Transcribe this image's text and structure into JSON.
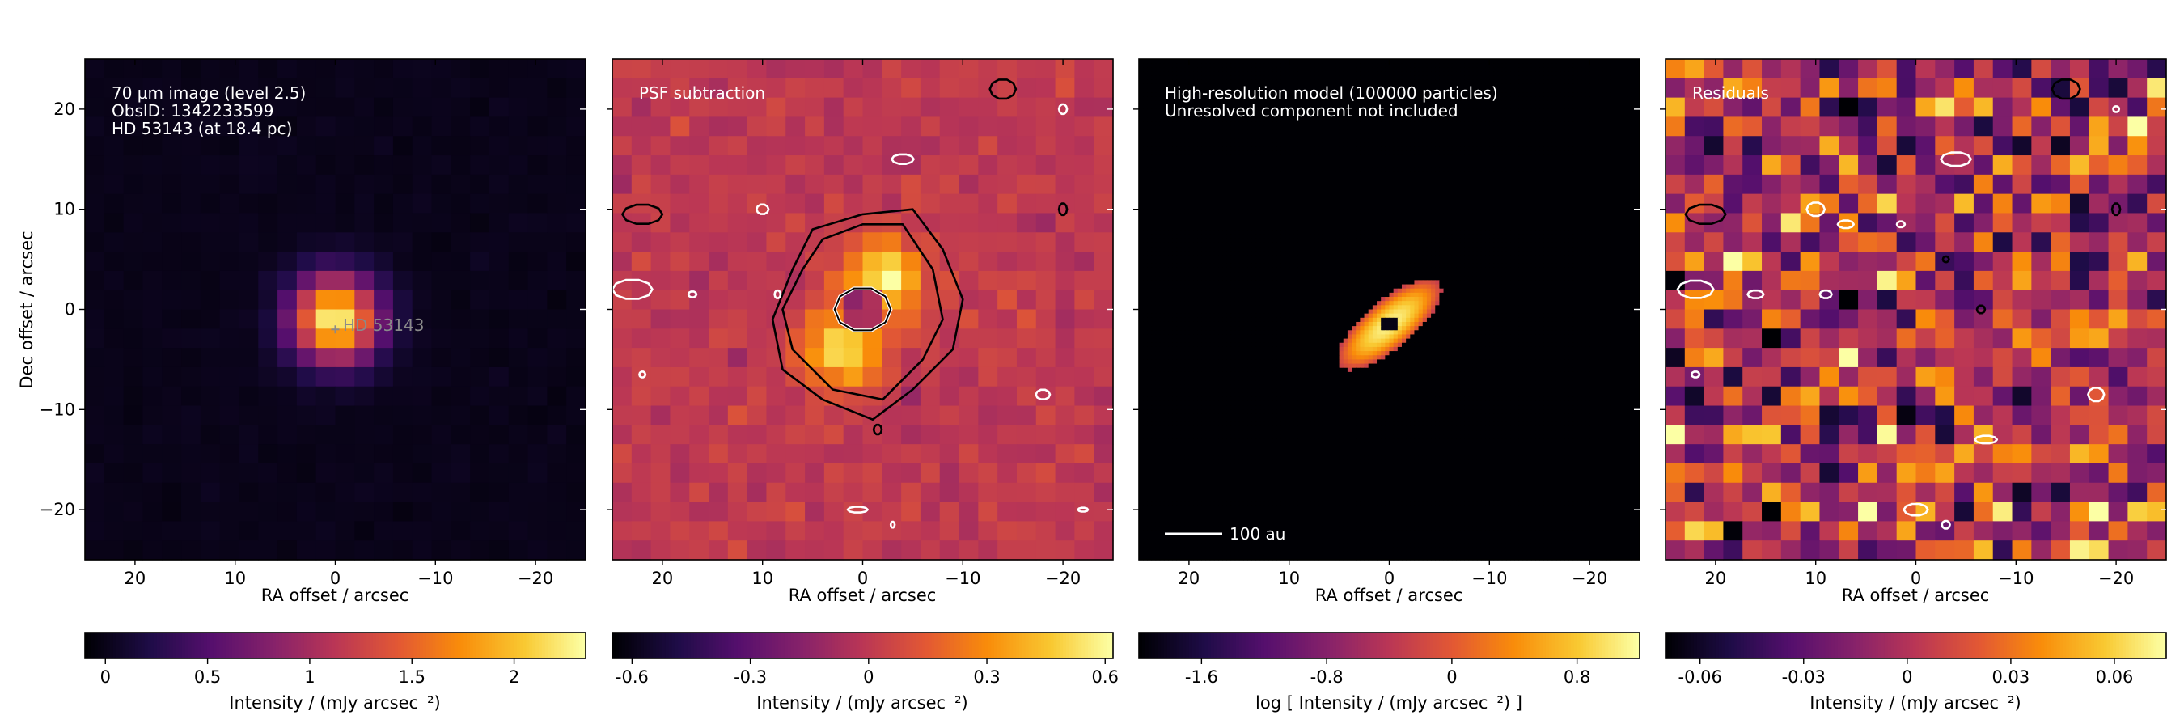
{
  "chart_data": [
    {
      "type": "heatmap",
      "subject": "observed image",
      "annotation_lines": [
        "70 µm image (level 2.5)",
        "ObsID: 1342233599",
        "HD 53143 (at 18.4 pc)"
      ],
      "marker_label": "HD 53143",
      "marker_position": [
        0,
        -2
      ],
      "xlabel": "RA offset / arcsec",
      "ylabel": "Dec offset / arcsec",
      "xlim": [
        25,
        -25
      ],
      "ylim": [
        -25,
        25
      ],
      "xticks": [
        20,
        10,
        0,
        -10,
        -20
      ],
      "yticks": [
        20,
        10,
        0,
        -10,
        -20
      ],
      "xtick_labels": [
        "20",
        "10",
        "0",
        "−10",
        "−20"
      ],
      "ytick_labels": [
        "20",
        "10",
        "0",
        "−10",
        "−20"
      ],
      "colormap": "inferno",
      "colorbar": {
        "label": "Intensity / (mJy arcsec⁻²)",
        "range": [
          -0.1,
          2.35
        ],
        "ticks": [
          0,
          0.5,
          1,
          1.5,
          2
        ],
        "tick_labels": [
          "0",
          "0.5",
          "1",
          "1.5",
          "2"
        ]
      },
      "peak_intensity": 2.3,
      "source_center": [
        0,
        -1
      ],
      "source_fwhm_arcsec": 7
    },
    {
      "type": "heatmap",
      "subject": "PSF subtraction",
      "annotation_lines": [
        "PSF subtraction"
      ],
      "xlabel": "RA offset / arcsec",
      "xlim": [
        25,
        -25
      ],
      "ylim": [
        -25,
        25
      ],
      "xticks": [
        20,
        10,
        0,
        -10,
        -20
      ],
      "xtick_labels": [
        "20",
        "10",
        "0",
        "−10",
        "−20"
      ],
      "colormap": "inferno",
      "colorbar": {
        "label": "Intensity / (mJy arcsec⁻²)",
        "range": [
          -0.65,
          0.62
        ],
        "ticks": [
          -0.6,
          -0.3,
          0,
          0.3,
          0.6
        ],
        "tick_labels": [
          "-0.6",
          "-0.3",
          "0",
          "0.3",
          "0.6"
        ]
      },
      "features": [
        {
          "kind": "positive lobe",
          "center": [
            -2,
            3
          ],
          "peak": 0.6
        },
        {
          "kind": "positive lobe",
          "center": [
            2,
            -4
          ],
          "peak": 0.55
        },
        {
          "kind": "negative core",
          "center": [
            0,
            0
          ],
          "value": -0.6
        }
      ],
      "contours": "black = positive significance levels, white = negative levels"
    },
    {
      "type": "heatmap",
      "subject": "model",
      "annotation_lines": [
        "High-resolution model (100000 particles)",
        "Unresolved component not included"
      ],
      "scale_bar_label": "100 au",
      "xlabel": "RA offset / arcsec",
      "xlim": [
        25,
        -25
      ],
      "ylim": [
        -25,
        25
      ],
      "xticks": [
        20,
        10,
        0,
        -10,
        -20
      ],
      "xtick_labels": [
        "20",
        "10",
        "0",
        "−10",
        "−20"
      ],
      "colormap": "inferno",
      "colorbar": {
        "label": "log [ Intensity / (mJy arcsec⁻²) ]",
        "scale": "log",
        "range": [
          -2.0,
          1.2
        ],
        "ticks": [
          -1.6,
          -0.8,
          0,
          0.8
        ],
        "tick_labels": [
          "-1.6",
          "-0.8",
          "0",
          "0.8"
        ]
      },
      "disk": {
        "center": [
          0,
          -1.5
        ],
        "semi_major_arcsec": 6.5,
        "semi_minor_arcsec": 2.4,
        "position_angle_deg": 40,
        "max_log_intensity": 1.1,
        "inner_hole_arcsec": 0.8
      }
    },
    {
      "type": "heatmap",
      "subject": "residuals",
      "annotation_lines": [
        "Residuals"
      ],
      "xlabel": "RA offset / arcsec",
      "xlim": [
        25,
        -25
      ],
      "ylim": [
        -25,
        25
      ],
      "xticks": [
        20,
        10,
        0,
        -10,
        -20
      ],
      "xtick_labels": [
        "20",
        "10",
        "0",
        "−10",
        "−20"
      ],
      "colormap": "inferno",
      "colorbar": {
        "label": "Intensity / (mJy arcsec⁻²)",
        "range": [
          -0.07,
          0.075
        ],
        "ticks": [
          -0.06,
          -0.03,
          0,
          0.03,
          0.06
        ],
        "tick_labels": [
          "-0.06",
          "-0.03",
          "0",
          "0.03",
          "0.06"
        ]
      },
      "noise_rms": 0.03,
      "contours": "black = positive significance levels, white = negative levels"
    }
  ]
}
